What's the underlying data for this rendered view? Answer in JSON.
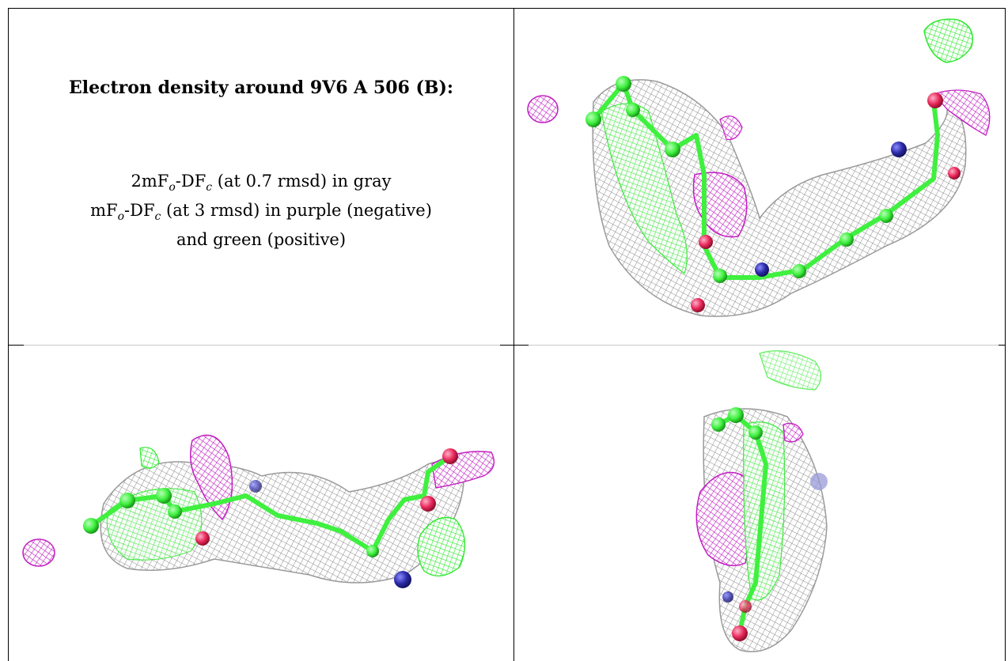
{
  "caption": {
    "heading": "Electron density around 9V6 A 506 (B):",
    "line1_prefix": "2mF",
    "line1_sub_o": "o",
    "line1_mid": "-DF",
    "line1_sub_c": "c",
    "line1_suffix": " (at 0.7 rmsd) in gray",
    "line2_prefix": "mF",
    "line2_sub_o": "o",
    "line2_mid": "-DF",
    "line2_sub_c": "c",
    "line2_suffix": " (at 3 rmsd) in purple (negative)",
    "line3": "and green (positive)"
  },
  "panels": [
    {
      "name": "view-top-right"
    },
    {
      "name": "view-bottom-left"
    },
    {
      "name": "view-bottom-right"
    }
  ],
  "colors": {
    "mesh_gray": "#8c8c8c",
    "difference_negative": "#c21ec2",
    "difference_positive": "#2ee82e",
    "carbon": "#3ff03f",
    "oxygen": "#e8285a",
    "nitrogen": "#2a2aa8"
  }
}
